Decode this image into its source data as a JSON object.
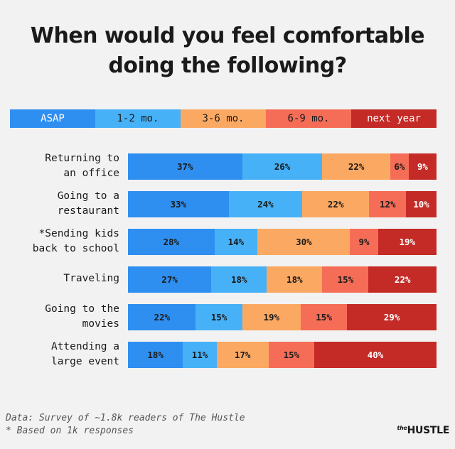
{
  "title_lines": [
    "When would you feel comfortable",
    "doing the following?"
  ],
  "colors": {
    "ASAP": "#2f8ff0",
    "1-2 mo.": "#47b1f7",
    "3-6 mo.": "#fba962",
    "6-9 mo.": "#f56d57",
    "next year": "#c42b26"
  },
  "legend_text_colors": {
    "ASAP": "#ffffff",
    "1-2 mo.": "#1a1a1a",
    "3-6 mo.": "#1a1a1a",
    "6-9 mo.": "#1a1a1a",
    "next year": "#ffffff"
  },
  "chart_data": {
    "type": "bar",
    "orientation": "horizontal",
    "stacked": true,
    "title": "When would you feel comfortable doing the following?",
    "categories": [
      [
        "Returning to",
        "an office"
      ],
      [
        "Going to a",
        "restaurant"
      ],
      [
        "*Sending kids",
        "back to school"
      ],
      [
        "Traveling"
      ],
      [
        "Going to the",
        "movies"
      ],
      [
        "Attending a",
        "large event"
      ]
    ],
    "series": [
      {
        "name": "ASAP",
        "values": [
          37,
          33,
          28,
          27,
          22,
          18
        ]
      },
      {
        "name": "1-2 mo.",
        "values": [
          26,
          24,
          14,
          18,
          15,
          11
        ]
      },
      {
        "name": "3-6 mo.",
        "values": [
          22,
          22,
          30,
          18,
          19,
          17
        ]
      },
      {
        "name": "6-9 mo.",
        "values": [
          6,
          12,
          9,
          15,
          15,
          15
        ]
      },
      {
        "name": "next year",
        "values": [
          9,
          10,
          19,
          22,
          29,
          40
        ]
      }
    ],
    "legend": "top",
    "value_suffix": "%"
  },
  "footer": {
    "line1": "Data: Survey of ~1.8k readers of The Hustle",
    "line2": "* Based on 1k responses"
  },
  "logo": {
    "small": "the",
    "big": "HUSTLE"
  }
}
